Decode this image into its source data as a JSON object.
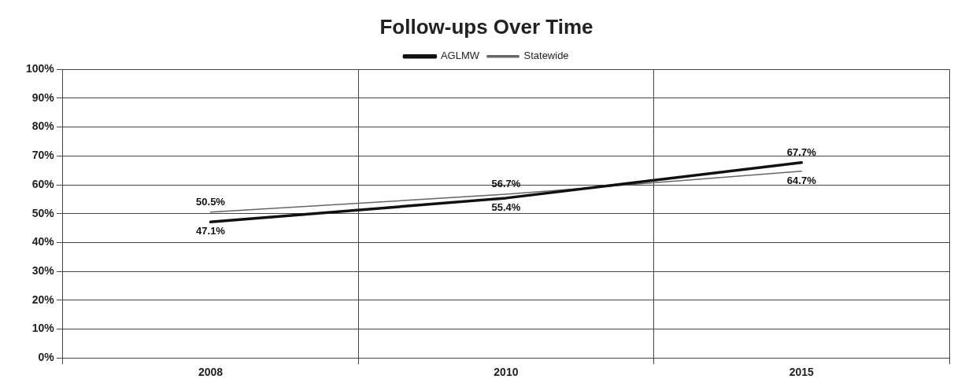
{
  "chart_data": {
    "type": "line",
    "title": "Follow-ups Over Time",
    "categories": [
      "2008",
      "2010",
      "2015"
    ],
    "series": [
      {
        "name": "AGLMW",
        "color": "#111111",
        "values": [
          47.1,
          55.4,
          67.7
        ],
        "value_labels": [
          "47.1%",
          "55.4%",
          "67.7%"
        ]
      },
      {
        "name": "Statewide",
        "color": "#666666",
        "values": [
          50.5,
          56.7,
          64.7
        ],
        "value_labels": [
          "50.5%",
          "56.7%",
          "64.7%"
        ]
      }
    ],
    "ylim": [
      0,
      100
    ],
    "yticks": [
      {
        "value": 0,
        "label": "0%"
      },
      {
        "value": 10,
        "label": "10%"
      },
      {
        "value": 20,
        "label": "20%"
      },
      {
        "value": 30,
        "label": "30%"
      },
      {
        "value": 40,
        "label": "40%"
      },
      {
        "value": 50,
        "label": "50%"
      },
      {
        "value": 60,
        "label": "60%"
      },
      {
        "value": 70,
        "label": "70%"
      },
      {
        "value": 80,
        "label": "80%"
      },
      {
        "value": 90,
        "label": "90%"
      },
      {
        "value": 100,
        "label": "100%"
      }
    ],
    "grid": true,
    "legend": "top",
    "marker": "none",
    "line_style": "solid"
  }
}
